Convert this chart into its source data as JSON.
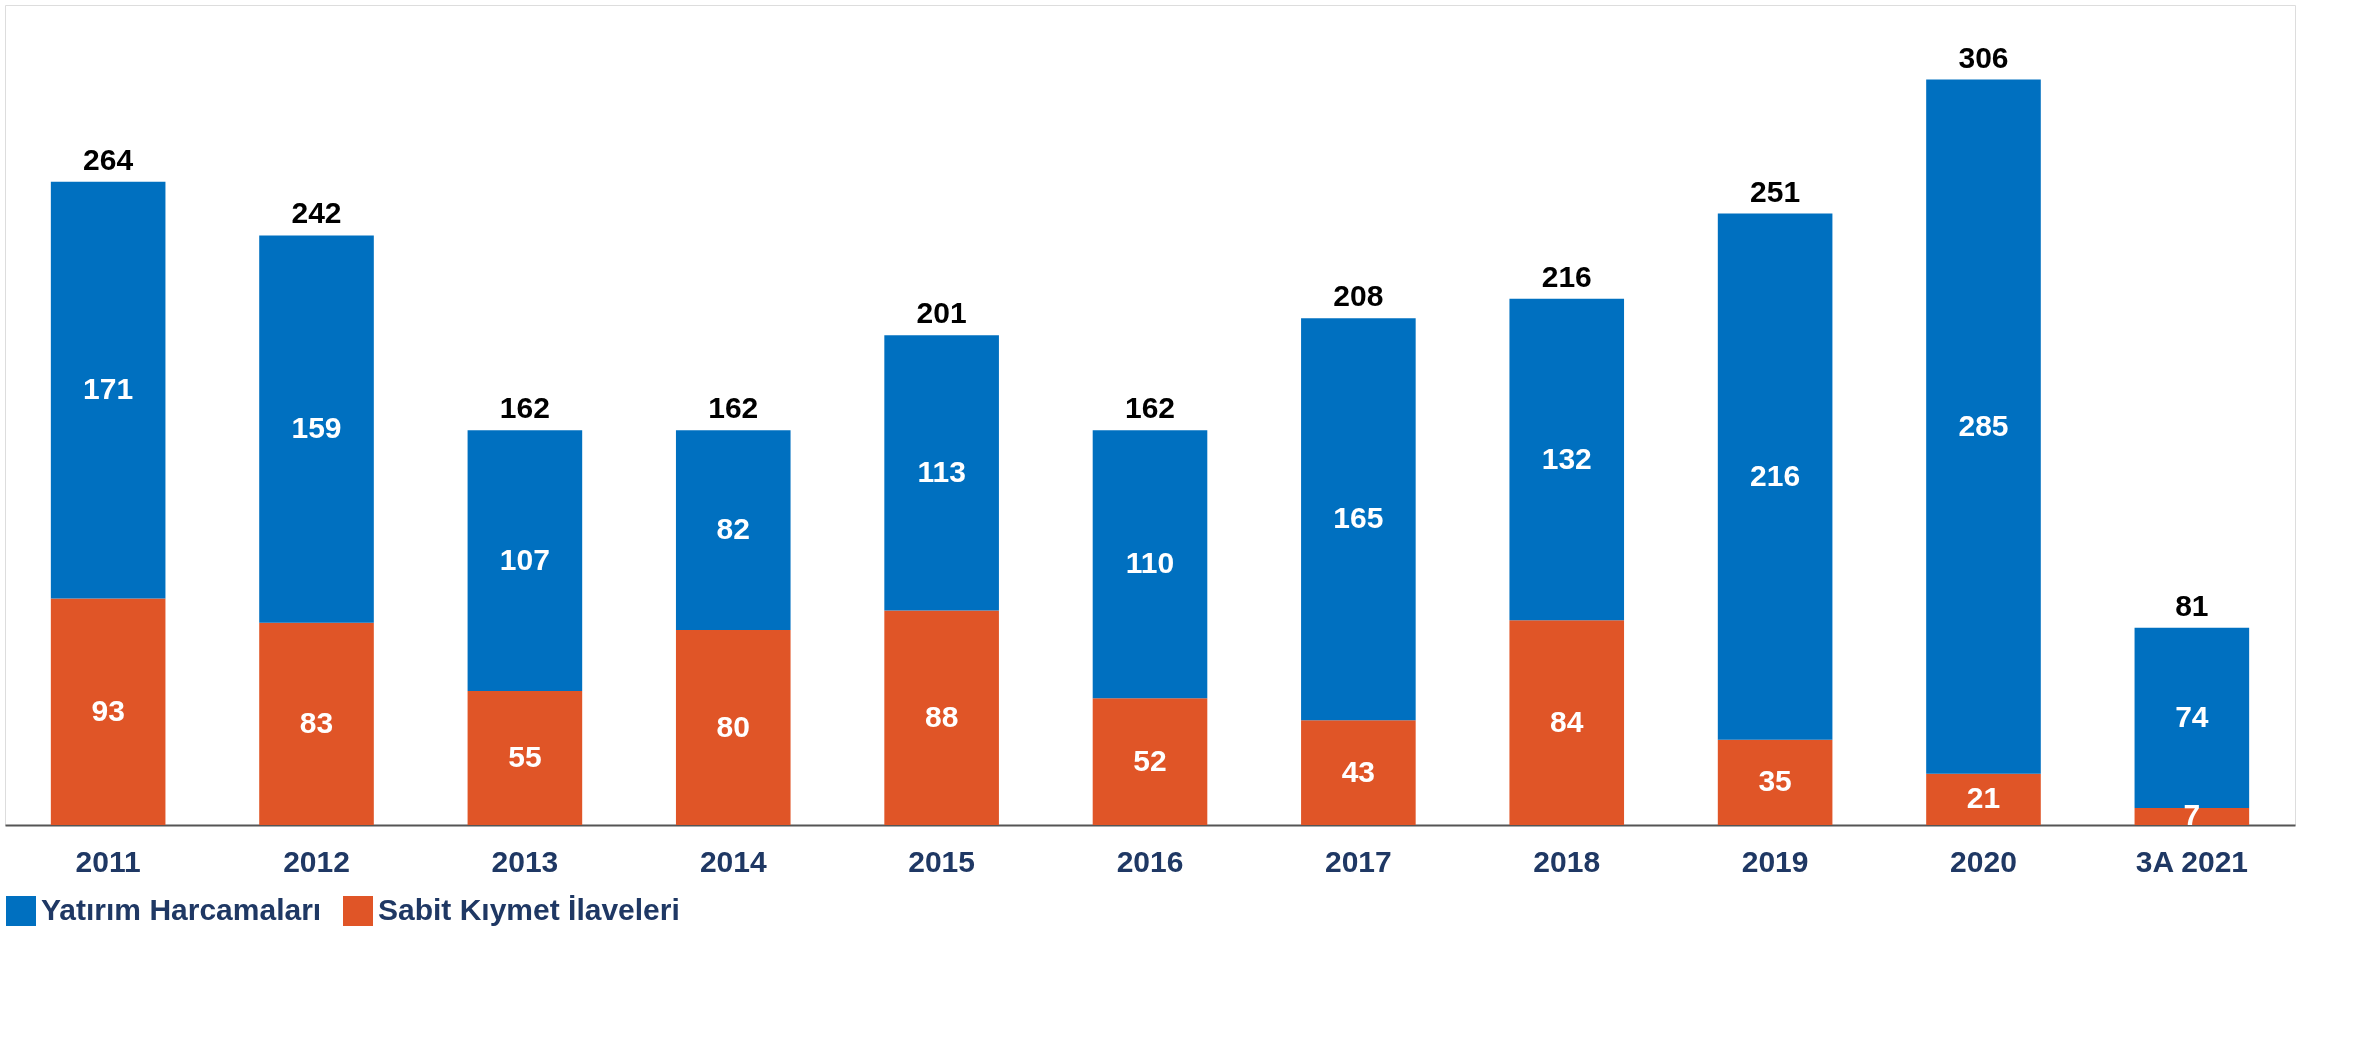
{
  "chart_data": {
    "type": "bar",
    "stacked": true,
    "data_labels": true,
    "legend": "bottom",
    "grid": false,
    "tick_labels": "x",
    "categories": [
      "2011",
      "2012",
      "2013",
      "2014",
      "2015",
      "2016",
      "2017",
      "2018",
      "2019",
      "2020",
      "3A 2021"
    ],
    "series": [
      {
        "name": "Sabit Kıymet İlaveleri",
        "color": "#e05527",
        "values": [
          93,
          83,
          55,
          80,
          88,
          52,
          43,
          84,
          35,
          21,
          7
        ]
      },
      {
        "name": "Yatırım Harcamaları",
        "color": "#0070c0",
        "values": [
          171,
          159,
          107,
          82,
          113,
          110,
          165,
          132,
          216,
          285,
          74
        ]
      }
    ],
    "totals": [
      "264",
      "242",
      "162",
      "162",
      "201",
      "162",
      "208",
      "216",
      "251",
      "306",
      "81"
    ]
  }
}
